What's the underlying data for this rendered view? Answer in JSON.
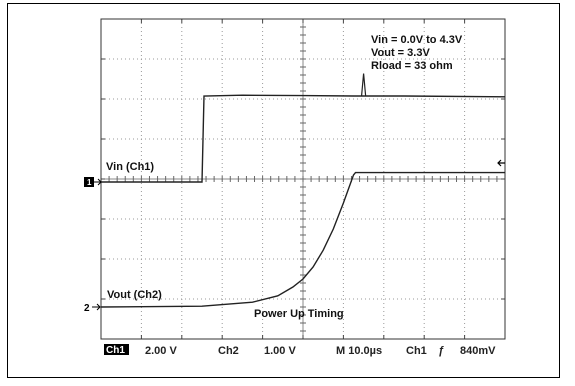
{
  "chart_data": {
    "type": "line",
    "title": "Power Up Timing",
    "x_unit": "µs",
    "x_range": [
      -40,
      40
    ],
    "y_unit": "div",
    "y_range": [
      -4,
      4
    ],
    "grid": true,
    "conditions": {
      "vin": "Vin = 0.0V to 4.3V",
      "vout": "Vout = 3.3V",
      "rload": "Rload = 33 ohm"
    },
    "series": [
      {
        "name": "Vin (Ch1)",
        "ground_label": "1",
        "color": "#222222",
        "points": [
          [
            -40,
            0.0
          ],
          [
            -20.0,
            0.0
          ],
          [
            -19.6,
            2.15
          ],
          [
            -12,
            2.17
          ],
          [
            0,
            2.16
          ],
          [
            10,
            2.15
          ],
          [
            20,
            2.15
          ],
          [
            40,
            2.13
          ]
        ]
      },
      {
        "name": "Vout (Ch2)",
        "ground_label": "2",
        "color": "#222222",
        "points": [
          [
            -40,
            0.0
          ],
          [
            -20,
            0.02
          ],
          [
            -10,
            0.12
          ],
          [
            -5,
            0.28
          ],
          [
            -2,
            0.5
          ],
          [
            0,
            0.7
          ],
          [
            2,
            1.0
          ],
          [
            4,
            1.42
          ],
          [
            6,
            1.95
          ],
          [
            8,
            2.6
          ],
          [
            10,
            3.3
          ],
          [
            10.4,
            3.36
          ],
          [
            40,
            3.36
          ]
        ]
      }
    ],
    "status_bar": {
      "ch1_label": "Ch1",
      "ch1_scale": "2.00 V",
      "ch2_label": "Ch2",
      "ch2_scale": "1.00 V",
      "timebase": "M 10.0µs",
      "trigger_source": "Ch1",
      "trigger_slope": "ƒ",
      "trigger_level": "840mV"
    }
  }
}
